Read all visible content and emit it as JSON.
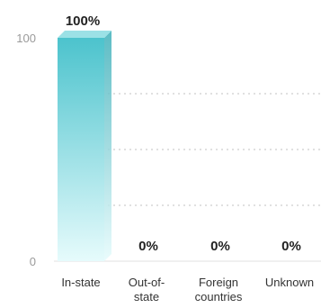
{
  "chart_data": {
    "type": "bar",
    "categories": [
      [
        "In-state"
      ],
      [
        "Out-of-",
        "state"
      ],
      [
        "Foreign",
        "countries"
      ],
      [
        "Unknown"
      ]
    ],
    "values": [
      100,
      0,
      0,
      0
    ],
    "value_labels": [
      "100%",
      "0%",
      "0%",
      "0%"
    ],
    "y_ticks": [
      "100",
      "0"
    ],
    "ylim": [
      0,
      100
    ],
    "grid": "dotted horizontal",
    "title": "",
    "xlabel": "",
    "ylabel": ""
  },
  "colors": {
    "bar_top": "#4cc3cd",
    "bar_bottom": "#e6fbfc",
    "bar_side": "#3fb0ba",
    "bar_cap": "#9be1e6"
  }
}
